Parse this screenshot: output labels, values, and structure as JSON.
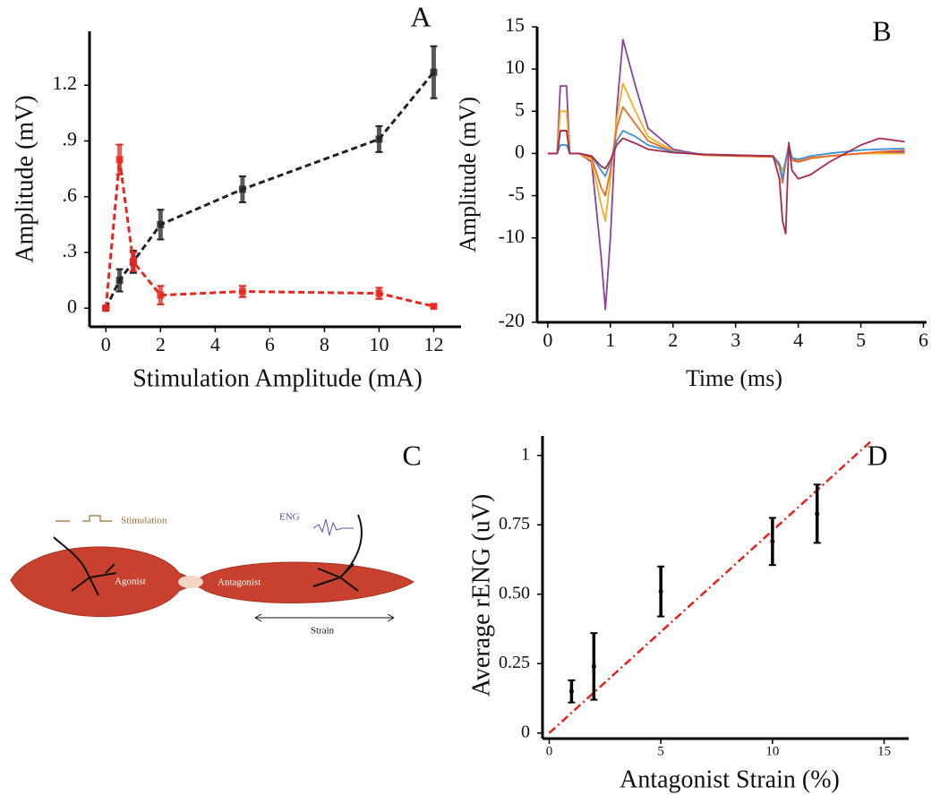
{
  "chart_data": [
    {
      "type": "line",
      "title": "A",
      "x_label": "Stimulation Amplitude (mA)",
      "y_label": "Amplitude (mV)",
      "x": [
        0,
        0.5,
        1,
        2,
        5,
        10,
        12
      ],
      "series": [
        {
          "color": "#222222",
          "values": [
            0,
            0.15,
            0.25,
            0.45,
            0.64,
            0.91,
            1.27
          ],
          "errors": [
            0,
            0.06,
            0.06,
            0.08,
            0.07,
            0.07,
            0.14
          ]
        },
        {
          "color": "#e8261e",
          "values": [
            0,
            0.8,
            0.25,
            0.07,
            0.09,
            0.08,
            0.01
          ],
          "errors": [
            0,
            0.08,
            0.05,
            0.05,
            0.03,
            0.03,
            0.01
          ]
        }
      ],
      "line_style": "dashed",
      "markers": true,
      "xlim": [
        -0.6,
        13
      ],
      "ylim": [
        -0.1,
        1.49
      ],
      "xticks": [
        0,
        2,
        4,
        6,
        8,
        10,
        12
      ],
      "yticks": [
        0,
        {
          "value": 0.3,
          "label": ".3"
        },
        {
          "value": 0.6,
          "label": ".6"
        },
        {
          "value": 0.9,
          "label": ".9"
        },
        1.2
      ]
    },
    {
      "type": "line",
      "title": "B",
      "x_label": "Time (ms)",
      "y_label": "Amplitude (mV)",
      "x": [
        0,
        0.15,
        0.2,
        0.3,
        0.35,
        0.5,
        0.7,
        0.85,
        0.92,
        1.0,
        1.1,
        1.2,
        1.4,
        1.6,
        2.0,
        2.5,
        3.0,
        3.6,
        3.7,
        3.75,
        3.8,
        3.85,
        3.9,
        4.0,
        4.2,
        4.5,
        5.0,
        5.3,
        5.7
      ],
      "series": [
        {
          "color": "#8e3fa3",
          "values": [
            0,
            0,
            8,
            8,
            0,
            0,
            -1,
            -12,
            -18.5,
            -10,
            5,
            13.5,
            8,
            3,
            0.5,
            -0.2,
            -0.3,
            -0.4,
            -1.5,
            -3,
            -1,
            1,
            -0.5,
            -1,
            -0.6,
            -0.3,
            0,
            0.1,
            0.2
          ]
        },
        {
          "color": "#f2b01e",
          "values": [
            0,
            0,
            5,
            5,
            0,
            0,
            -0.8,
            -6,
            -8,
            -3,
            4,
            8.3,
            5,
            2,
            0.3,
            -0.2,
            -0.3,
            -0.4,
            -1.2,
            -2,
            -1,
            0.8,
            -0.5,
            -0.8,
            -0.6,
            -0.3,
            0,
            0,
            0
          ]
        },
        {
          "color": "#ee6a24",
          "values": [
            0,
            0,
            2.7,
            2.7,
            0,
            0,
            -0.5,
            -4,
            -5,
            -2,
            3,
            5.5,
            3.5,
            1.5,
            0.2,
            -0.2,
            -0.3,
            -0.4,
            -1.5,
            -3.5,
            -1,
            1,
            -0.8,
            -1,
            -0.5,
            -0.3,
            0,
            0.2,
            0.4
          ]
        },
        {
          "color": "#3f8fd2",
          "values": [
            0,
            0,
            1,
            1,
            0,
            0,
            -0.3,
            -2,
            -2.7,
            -1,
            1.5,
            2.7,
            2,
            1,
            0.2,
            -0.1,
            -0.2,
            -0.3,
            -1.2,
            -3,
            -0.8,
            1,
            -0.5,
            -0.7,
            -0.3,
            0,
            0.4,
            0.5,
            0.6
          ]
        },
        {
          "color": "#a8284e",
          "values": [
            0,
            0,
            2.7,
            2.7,
            0,
            0,
            -0.3,
            -1.5,
            -1.8,
            -0.8,
            1,
            1.8,
            1.2,
            0.5,
            0.1,
            -0.1,
            -0.2,
            -0.3,
            -3,
            -8,
            -9.5,
            1.3,
            -2,
            -3,
            -2.5,
            -1,
            1,
            1.8,
            1.4
          ]
        }
      ],
      "line_style": "solid",
      "xlim": [
        -0.17,
        6.05
      ],
      "ylim": [
        -20,
        15
      ],
      "xticks": [
        0,
        1,
        2,
        3,
        4,
        5,
        6
      ],
      "yticks": [
        15,
        10,
        5,
        0,
        -5,
        -10,
        -20
      ]
    },
    {
      "type": "scatter",
      "title": "D",
      "x_label": "Antagonist Strain (%)",
      "y_label": "Average rENG (uV)",
      "x": [
        1,
        2,
        5,
        10,
        12
      ],
      "series": [
        {
          "color": "#000000",
          "values": [
            0.15,
            0.24,
            0.51,
            0.69,
            0.79
          ],
          "errors": [
            0.04,
            0.12,
            0.09,
            0.085,
            0.105
          ]
        }
      ],
      "fit": {
        "x": [
          0,
          14.4
        ],
        "values": [
          0,
          1.05
        ],
        "color": "#e8201a",
        "line_style": "dashdot"
      },
      "xlim": [
        -0.3,
        16.1
      ],
      "ylim": [
        -0.02,
        1.07
      ],
      "xticks": [
        0,
        5,
        10,
        15
      ],
      "yticks": [
        0,
        0.25,
        {
          "value": 0.5,
          "label": "0.50"
        },
        0.75,
        1
      ]
    }
  ],
  "diagram": {
    "title": "C",
    "stimulation": "Stimulation",
    "eng": "ENG",
    "agonist": "Agonist",
    "antagonist": "Antagonist",
    "strain": "Strain"
  }
}
